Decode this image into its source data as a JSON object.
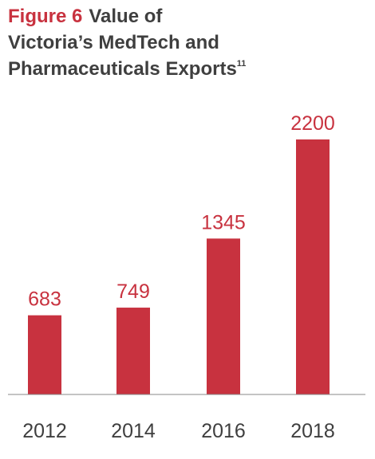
{
  "title": {
    "figure_label": "Figure 6",
    "line1": "Value of",
    "line2": "Victoria’s MedTech and",
    "line3": "Pharmaceuticals Exports",
    "footnote": "11"
  },
  "colors": {
    "accent": "#c8323f",
    "text": "#3f3f3f",
    "axis": "#8a8a8a"
  },
  "chart_data": {
    "type": "bar",
    "categories": [
      "2012",
      "2014",
      "2016",
      "2018"
    ],
    "values": [
      683,
      749,
      1345,
      2200
    ],
    "data_labels": [
      "683",
      "749",
      "1345",
      "2200"
    ],
    "ylim": [
      0,
      2200
    ],
    "grid": false,
    "legend": "none"
  }
}
